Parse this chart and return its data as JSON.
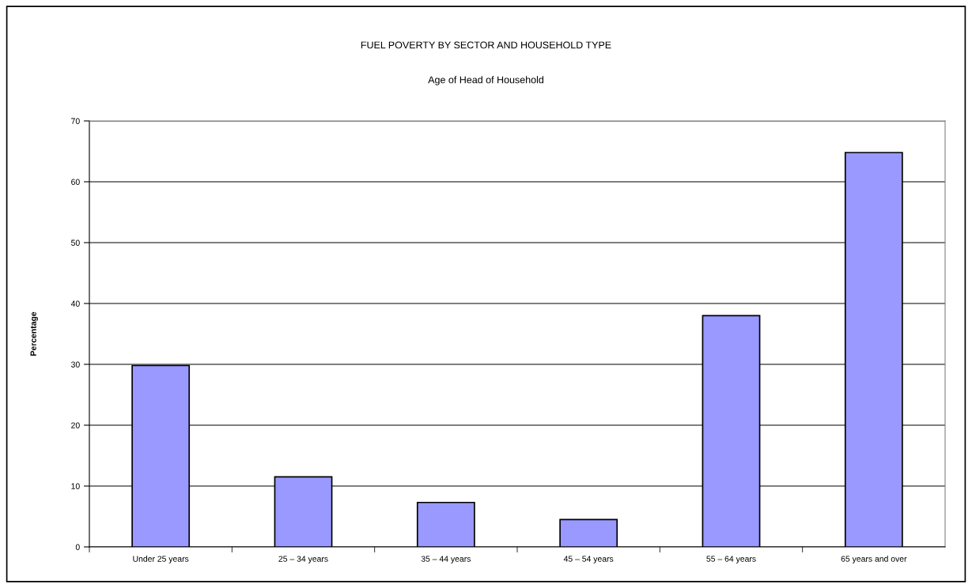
{
  "chart_data": {
    "type": "bar",
    "title": "FUEL POVERTY BY SECTOR AND HOUSEHOLD TYPE",
    "subtitle": "Age of Head of Household",
    "ylabel": "Percentage",
    "categories": [
      "Under 25 years",
      "25 – 34 years",
      "35 – 44 years",
      "45 – 54 years",
      "55 – 64 years",
      "65 years and over"
    ],
    "values": [
      29.8,
      11.5,
      7.3,
      4.5,
      38.0,
      64.8
    ],
    "color": "#9999ff",
    "ylim": [
      0,
      70
    ],
    "yticks": [
      0,
      10,
      20,
      30,
      40,
      50,
      60,
      70
    ],
    "grid": "y",
    "legend": false
  }
}
